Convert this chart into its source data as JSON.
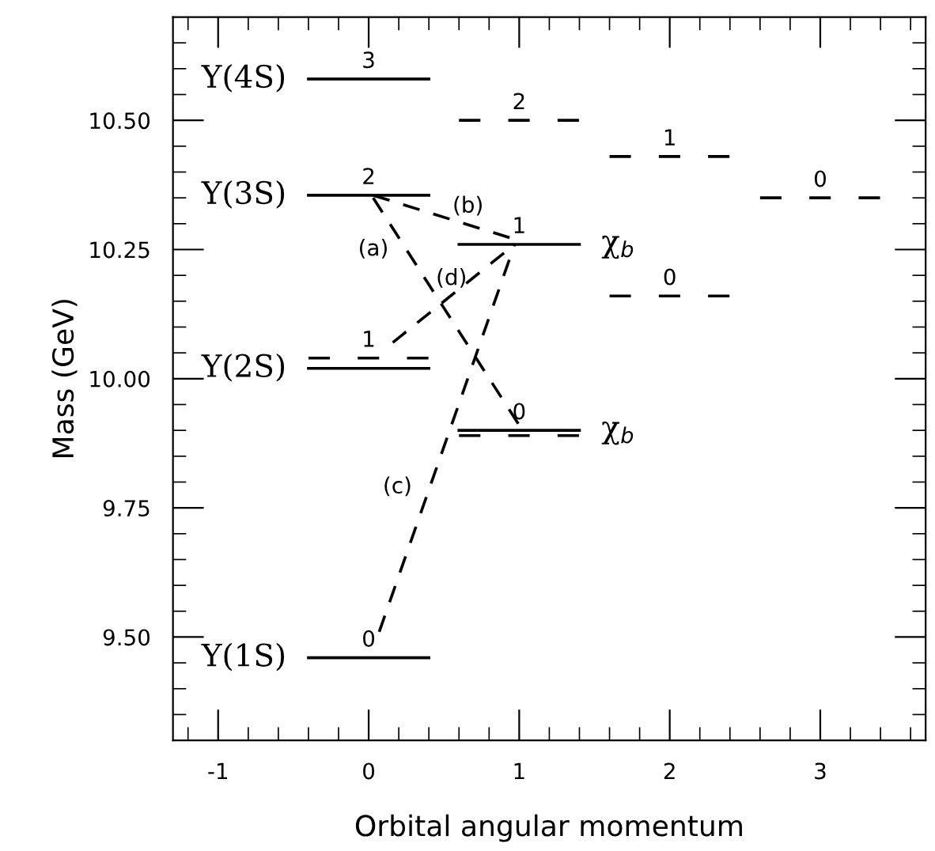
{
  "chart_data": {
    "type": "line",
    "xlabel": "Orbital angular momentum",
    "ylabel": "Mass (GeV)",
    "xlim": [
      -1.3,
      3.7
    ],
    "ylim": [
      9.3,
      10.7
    ],
    "xticks": [
      -1,
      0,
      1,
      2,
      3,
      {
        "value": -1.2,
        "label": null
      },
      {
        "value": -0.8,
        "label": null
      },
      {
        "value": -0.6,
        "label": null
      },
      {
        "value": -0.4,
        "label": null
      },
      {
        "value": -0.2,
        "label": null
      },
      {
        "value": 0.2,
        "label": null
      },
      {
        "value": 0.4,
        "label": null
      },
      {
        "value": 0.6,
        "label": null
      },
      {
        "value": 0.8,
        "label": null
      },
      {
        "value": 1.2,
        "label": null
      },
      {
        "value": 1.4,
        "label": null
      },
      {
        "value": 1.6,
        "label": null
      },
      {
        "value": 1.8,
        "label": null
      },
      {
        "value": 2.2,
        "label": null
      },
      {
        "value": 2.4,
        "label": null
      },
      {
        "value": 2.6,
        "label": null
      },
      {
        "value": 2.8,
        "label": null
      },
      {
        "value": 3.2,
        "label": null
      },
      {
        "value": 3.4,
        "label": null
      },
      {
        "value": 3.6,
        "label": null
      }
    ],
    "yticks": [
      {
        "value": 9.5,
        "label": "9.50"
      },
      {
        "value": 9.75,
        "label": "9.75"
      },
      {
        "value": 10.0,
        "label": "10.00"
      },
      {
        "value": 10.25,
        "label": "10.25"
      },
      {
        "value": 10.5,
        "label": "10.50"
      },
      {
        "value": 9.35,
        "label": null
      },
      {
        "value": 9.4,
        "label": null
      },
      {
        "value": 9.45,
        "label": null
      },
      {
        "value": 9.55,
        "label": null
      },
      {
        "value": 9.6,
        "label": null
      },
      {
        "value": 9.65,
        "label": null
      },
      {
        "value": 9.7,
        "label": null
      },
      {
        "value": 9.8,
        "label": null
      },
      {
        "value": 9.85,
        "label": null
      },
      {
        "value": 9.9,
        "label": null
      },
      {
        "value": 9.95,
        "label": null
      },
      {
        "value": 10.05,
        "label": null
      },
      {
        "value": 10.1,
        "label": null
      },
      {
        "value": 10.15,
        "label": null
      },
      {
        "value": 10.2,
        "label": null
      },
      {
        "value": 10.3,
        "label": null
      },
      {
        "value": 10.35,
        "label": null
      },
      {
        "value": 10.4,
        "label": null
      },
      {
        "value": 10.45,
        "label": null
      },
      {
        "value": 10.55,
        "label": null
      },
      {
        "value": 10.6,
        "label": null
      },
      {
        "value": 10.65,
        "label": null
      }
    ],
    "grid": false,
    "legend": false,
    "marker": "none",
    "series": [
      {
        "color": "#000000",
        "x": [
          -0.4,
          0.4
        ],
        "values": [
          10.58,
          10.58
        ],
        "line_style": "solid"
      },
      {
        "color": "#000000",
        "x": [
          -0.4,
          0.4
        ],
        "values": [
          10.355,
          10.355
        ],
        "line_style": "solid"
      },
      {
        "color": "#000000",
        "x": [
          -0.4,
          0.4
        ],
        "values": [
          10.04,
          10.04
        ],
        "line_style": "dashed"
      },
      {
        "color": "#000000",
        "x": [
          -0.4,
          0.4
        ],
        "values": [
          10.02,
          10.02
        ],
        "line_style": "solid"
      },
      {
        "color": "#000000",
        "x": [
          -0.4,
          0.4
        ],
        "values": [
          9.46,
          9.46
        ],
        "line_style": "solid"
      },
      {
        "color": "#000000",
        "x": [
          0.6,
          1.4
        ],
        "values": [
          10.5,
          10.5
        ],
        "line_style": "dashed"
      },
      {
        "color": "#000000",
        "x": [
          0.6,
          1.4
        ],
        "values": [
          10.26,
          10.26
        ],
        "line_style": "solid"
      },
      {
        "color": "#000000",
        "x": [
          0.6,
          1.4
        ],
        "values": [
          9.9,
          9.9
        ],
        "line_style": "solid"
      },
      {
        "color": "#000000",
        "x": [
          0.6,
          1.4
        ],
        "values": [
          9.89,
          9.89
        ],
        "line_style": "dashed"
      },
      {
        "color": "#000000",
        "x": [
          1.6,
          2.4
        ],
        "values": [
          10.43,
          10.43
        ],
        "line_style": "dashed"
      },
      {
        "color": "#000000",
        "x": [
          1.6,
          2.4
        ],
        "values": [
          10.16,
          10.16
        ],
        "line_style": "dashed"
      },
      {
        "color": "#000000",
        "x": [
          2.6,
          3.4
        ],
        "values": [
          10.35,
          10.35
        ],
        "line_style": "dashed"
      },
      {
        "color": "#000000",
        "x": [
          0.03,
          1.0
        ],
        "values": [
          10.35,
          9.91
        ],
        "line_style": "dashed"
      },
      {
        "color": "#000000",
        "x": [
          0.03,
          0.97
        ],
        "values": [
          10.355,
          10.27
        ],
        "line_style": "dashed"
      },
      {
        "color": "#000000",
        "x": [
          0.07,
          0.97
        ],
        "values": [
          9.51,
          10.26
        ],
        "line_style": "dashed"
      },
      {
        "color": "#000000",
        "x": [
          0.16,
          0.97
        ],
        "values": [
          10.07,
          10.26
        ],
        "line_style": "dashed"
      }
    ],
    "annotations": [
      {
        "text": "Υ(4S)",
        "x": -0.4,
        "y": 10.58
      },
      {
        "text": "Υ(3S)",
        "x": -0.4,
        "y": 10.355
      },
      {
        "text": "Υ(2S)",
        "x": -0.4,
        "y": 10.02
      },
      {
        "text": "Υ(1S)",
        "x": -0.4,
        "y": 9.46
      },
      {
        "text": "χ$_{b}$",
        "x": 1.4,
        "y": 10.26
      },
      {
        "text": "χ$_{b}$",
        "x": 1.4,
        "y": 9.9
      },
      {
        "text": "3",
        "x": 0.0,
        "y": 10.58
      },
      {
        "text": "2",
        "x": 0.0,
        "y": 10.355
      },
      {
        "text": "1",
        "x": 0.0,
        "y": 10.04
      },
      {
        "text": "0",
        "x": 0.0,
        "y": 9.46
      },
      {
        "text": "2",
        "x": 1.0,
        "y": 10.5
      },
      {
        "text": "1",
        "x": 1.0,
        "y": 10.26
      },
      {
        "text": "0",
        "x": 1.0,
        "y": 9.9
      },
      {
        "text": "1",
        "x": 2.0,
        "y": 10.43
      },
      {
        "text": "0",
        "x": 2.0,
        "y": 10.16
      },
      {
        "text": "0",
        "x": 3.0,
        "y": 10.35
      },
      {
        "text": "(a)",
        "x": 0.25,
        "y": 10.25
      },
      {
        "text": "(b)",
        "x": 0.66,
        "y": 10.3
      },
      {
        "text": "(c)",
        "x": 0.41,
        "y": 9.79
      },
      {
        "text": "(d)",
        "x": 0.55,
        "y": 10.16
      }
    ]
  }
}
